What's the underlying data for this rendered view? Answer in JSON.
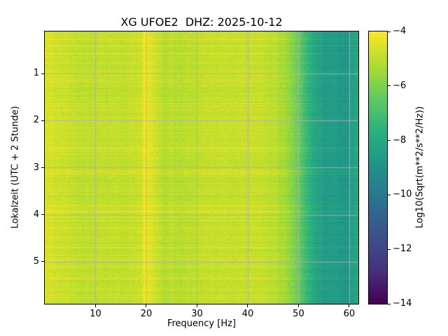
{
  "chart_data": {
    "type": "heatmap",
    "subtype": "spectrogram",
    "title": "XG UFOE2  DHZ: 2025-10-12",
    "xlabel": "Frequency [Hz]",
    "ylabel": "Lokalzeit (UTC + 2 Stunde)",
    "colorbar_label": "Log10(Sqrt(m**2/s**2/Hz))",
    "colormap": "viridis",
    "grid": true,
    "grid_color": "#b0b0b0",
    "x_range": [
      0,
      61.8
    ],
    "y_range": [
      0.1,
      5.9
    ],
    "clim": [
      -14,
      -4
    ],
    "x_ticks": [
      {
        "value": 10,
        "label": "10"
      },
      {
        "value": 20,
        "label": "20"
      },
      {
        "value": 30,
        "label": "30"
      },
      {
        "value": 40,
        "label": "40"
      },
      {
        "value": 50,
        "label": "50"
      },
      {
        "value": 60,
        "label": "60"
      }
    ],
    "y_ticks": [
      {
        "value": 1,
        "label": "1"
      },
      {
        "value": 2,
        "label": "2"
      },
      {
        "value": 3,
        "label": "3"
      },
      {
        "value": 4,
        "label": "4"
      },
      {
        "value": 5,
        "label": "5"
      }
    ],
    "colorbar_ticks": [
      {
        "value": -4,
        "label": "−4"
      },
      {
        "value": -6,
        "label": "−6"
      },
      {
        "value": -8,
        "label": "−8"
      },
      {
        "value": -10,
        "label": "−10"
      },
      {
        "value": -12,
        "label": "−12"
      },
      {
        "value": -14,
        "label": "−14"
      }
    ],
    "colormap_stops": [
      [
        0.0,
        "#440154"
      ],
      [
        0.125,
        "#46327e"
      ],
      [
        0.25,
        "#3b528b"
      ],
      [
        0.375,
        "#2c728e"
      ],
      [
        0.5,
        "#21918c"
      ],
      [
        0.625,
        "#28ae80"
      ],
      [
        0.75,
        "#5ec962"
      ],
      [
        0.875,
        "#addc30"
      ],
      [
        1.0,
        "#fde725"
      ]
    ],
    "spectral_profile": [
      [
        0,
        -4.55
      ],
      [
        1.5,
        -4.7
      ],
      [
        3,
        -4.85
      ],
      [
        8,
        -4.95
      ],
      [
        12,
        -4.85
      ],
      [
        15,
        -4.9
      ],
      [
        17,
        -4.85
      ],
      [
        19,
        -4.75
      ],
      [
        19.5,
        -4.4
      ],
      [
        20.5,
        -4.4
      ],
      [
        21.5,
        -4.8
      ],
      [
        24,
        -5.15
      ],
      [
        27,
        -5.1
      ],
      [
        30,
        -4.95
      ],
      [
        33,
        -4.85
      ],
      [
        36,
        -4.95
      ],
      [
        40,
        -4.85
      ],
      [
        43,
        -4.9
      ],
      [
        45,
        -5.0
      ],
      [
        47,
        -5.35
      ],
      [
        49,
        -5.9
      ],
      [
        50,
        -6.3
      ],
      [
        51,
        -6.9
      ],
      [
        52,
        -7.5
      ],
      [
        53,
        -8.0
      ],
      [
        54,
        -8.35
      ],
      [
        56,
        -8.55
      ],
      [
        58,
        -8.65
      ],
      [
        60,
        -8.65
      ],
      [
        61,
        -8.35
      ],
      [
        61.8,
        -7.9
      ]
    ],
    "noise": {
      "seed": 20251012,
      "row_base": 0.2,
      "bright_row_prob": 0.06,
      "bright_row_gain": 0.55,
      "col_smooth": 0.85,
      "col_step": 0.1,
      "pixel": 0.27
    },
    "notes": "Seismic spectrogram: high power (yellow, ca. -4.9) below ~47 Hz with a bright vertical band near 20 Hz; sharp roll-off between ~48 and ~53 Hz to low power (teal, ca. -8.6) up to ~62 Hz; thin horizontal bright streaks are transient events."
  }
}
